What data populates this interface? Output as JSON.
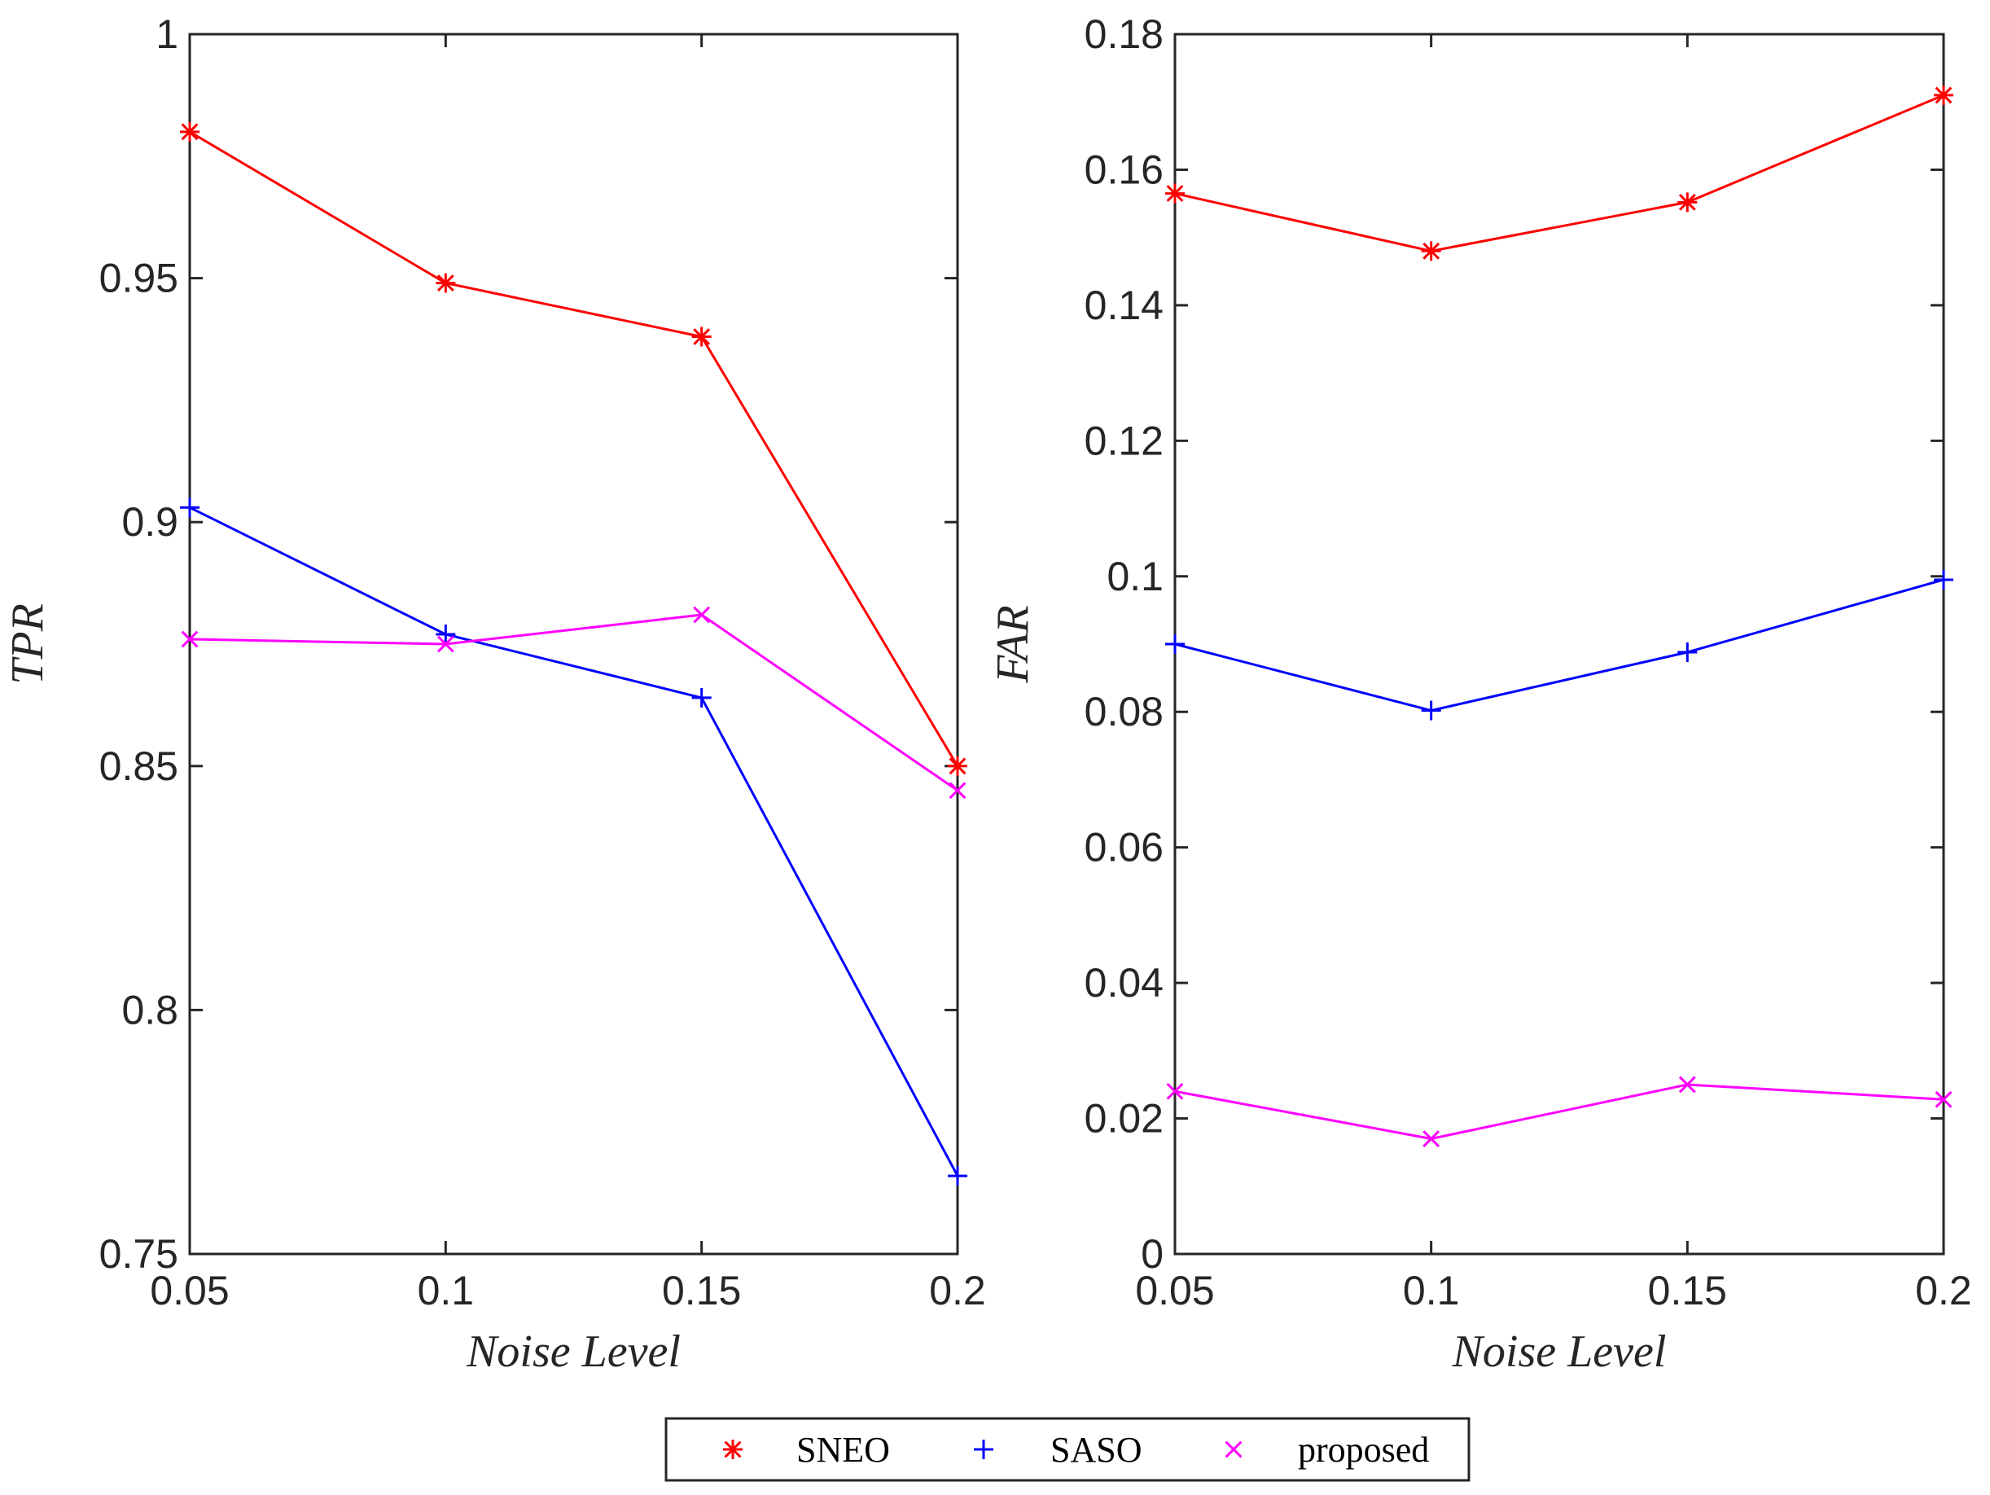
{
  "chart_data": [
    {
      "type": "line",
      "xlabel": "Noise Level",
      "ylabel": "TPR",
      "x": [
        0.05,
        0.1,
        0.15,
        0.2
      ],
      "xlim": [
        0.05,
        0.2
      ],
      "ylim": [
        0.75,
        1.0
      ],
      "xticks": [
        0.05,
        0.1,
        0.15,
        0.2
      ],
      "xtick_labels": [
        "0.05",
        "0.1",
        "0.15",
        "0.2"
      ],
      "yticks": [
        0.75,
        0.8,
        0.85,
        0.9,
        0.95,
        1.0
      ],
      "ytick_labels": [
        "0.75",
        "0.8",
        "0.85",
        "0.9",
        "0.95",
        "1"
      ],
      "grid": false,
      "series": [
        {
          "name": "SNEO",
          "color": "#ff0000",
          "marker": "asterisk",
          "values": [
            0.98,
            0.949,
            0.938,
            0.85
          ]
        },
        {
          "name": "SASO",
          "color": "#0000ff",
          "marker": "plus",
          "values": [
            0.903,
            0.877,
            0.864,
            0.766
          ]
        },
        {
          "name": "proposed",
          "color": "#ff00ff",
          "marker": "x",
          "values": [
            0.876,
            0.875,
            0.881,
            0.845
          ]
        }
      ]
    },
    {
      "type": "line",
      "xlabel": "Noise Level",
      "ylabel": "FAR",
      "x": [
        0.05,
        0.1,
        0.15,
        0.2
      ],
      "xlim": [
        0.05,
        0.2
      ],
      "ylim": [
        0,
        0.18
      ],
      "xticks": [
        0.05,
        0.1,
        0.15,
        0.2
      ],
      "xtick_labels": [
        "0.05",
        "0.1",
        "0.15",
        "0.2"
      ],
      "yticks": [
        0,
        0.02,
        0.04,
        0.06,
        0.08,
        0.1,
        0.12,
        0.14,
        0.16,
        0.18
      ],
      "ytick_labels": [
        "0",
        "0.02",
        "0.04",
        "0.06",
        "0.08",
        "0.1",
        "0.12",
        "0.14",
        "0.16",
        "0.18"
      ],
      "grid": false,
      "series": [
        {
          "name": "SNEO",
          "color": "#ff0000",
          "marker": "asterisk",
          "values": [
            0.1565,
            0.148,
            0.1552,
            0.171
          ]
        },
        {
          "name": "SASO",
          "color": "#0000ff",
          "marker": "plus",
          "values": [
            0.09,
            0.0802,
            0.0888,
            0.0995
          ]
        },
        {
          "name": "proposed",
          "color": "#ff00ff",
          "marker": "x",
          "values": [
            0.024,
            0.017,
            0.025,
            0.0228
          ]
        }
      ]
    }
  ],
  "legend": {
    "placement": "bottom-center",
    "entries": [
      {
        "label": "SNEO",
        "color": "#ff0000",
        "marker": "asterisk"
      },
      {
        "label": "SASO",
        "color": "#0000ff",
        "marker": "plus"
      },
      {
        "label": "proposed",
        "color": "#ff00ff",
        "marker": "x"
      }
    ]
  }
}
